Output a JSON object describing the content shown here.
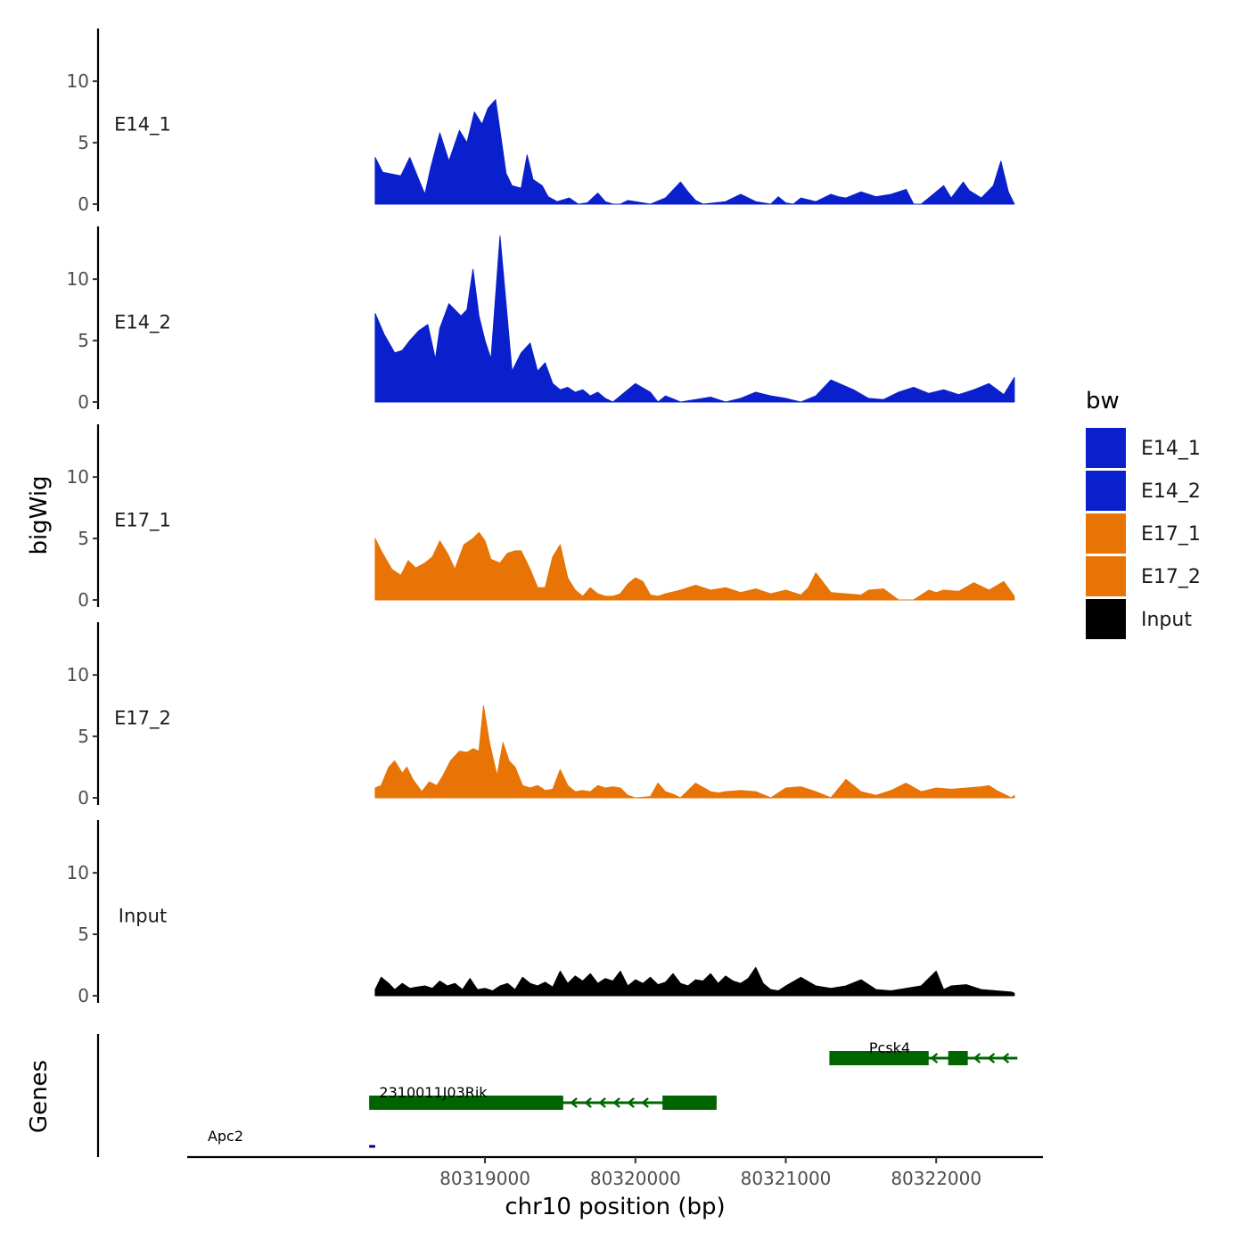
{
  "chart_data": {
    "type": "area",
    "x_axis_title": "chr10 position (bp)",
    "y_axis_title": "bigWig",
    "genes_axis_title": "Genes",
    "x_range": [
      80317020,
      80322710
    ],
    "x_ticks": [
      80319000,
      80320000,
      80321000,
      80322000
    ],
    "x_tick_labels": [
      "80319000",
      "80320000",
      "80321000",
      "80322000"
    ],
    "y_range": [
      0,
      14
    ],
    "y_ticks": [
      0,
      5,
      10
    ],
    "y_tick_labels": [
      "0",
      "5",
      "10"
    ],
    "legend_title": "bw",
    "legend": [
      {
        "name": "E14_1",
        "color": "#0a20cc"
      },
      {
        "name": "E14_2",
        "color": "#0a20cc"
      },
      {
        "name": "E17_1",
        "color": "#e87405"
      },
      {
        "name": "E17_2",
        "color": "#e87405"
      },
      {
        "name": "Input",
        "color": "#000000"
      }
    ],
    "tracks": [
      {
        "name": "E14_1",
        "color": "#0a20cc",
        "x": [
          80318270,
          80318320,
          80318440,
          80318500,
          80318560,
          80318600,
          80318640,
          80318700,
          80318760,
          80318830,
          80318880,
          80318930,
          80318980,
          80319020,
          80319070,
          80319100,
          80319140,
          80319180,
          80319240,
          80319280,
          80319320,
          80319380,
          80319420,
          80319480,
          80319560,
          80319620,
          80319680,
          80319750,
          80319800,
          80319850,
          80319900,
          80319950,
          80320100,
          80320200,
          80320300,
          80320350,
          80320400,
          80320450,
          80320600,
          80320700,
          80320800,
          80320900,
          80320950,
          80321000,
          80321050,
          80321100,
          80321200,
          80321300,
          80321350,
          80321400,
          80321500,
          80321600,
          80321700,
          80321800,
          80321850,
          80321900,
          80321950,
          80322050,
          80322100,
          80322180,
          80322220,
          80322300,
          80322380,
          80322430,
          80322480,
          80322520
        ],
        "y": [
          3.8,
          2.6,
          2.3,
          3.8,
          2.0,
          0.8,
          3.0,
          5.8,
          3.5,
          6.0,
          5.0,
          7.5,
          6.5,
          7.8,
          8.5,
          6.0,
          2.5,
          1.5,
          1.3,
          4.0,
          2.0,
          1.5,
          0.6,
          0.2,
          0.5,
          0.0,
          0.1,
          0.9,
          0.2,
          0.0,
          0.0,
          0.3,
          0.0,
          0.5,
          1.8,
          1.0,
          0.3,
          0.0,
          0.2,
          0.8,
          0.2,
          0.0,
          0.6,
          0.1,
          0.0,
          0.5,
          0.2,
          0.8,
          0.6,
          0.5,
          1.0,
          0.6,
          0.8,
          1.2,
          0.0,
          0.0,
          0.5,
          1.5,
          0.5,
          1.8,
          1.1,
          0.5,
          1.5,
          3.5,
          1.0,
          0.0
        ]
      },
      {
        "name": "E14_2",
        "color": "#0a20cc",
        "x": [
          80318270,
          80318330,
          80318400,
          80318450,
          80318500,
          80318560,
          80318620,
          80318670,
          80318700,
          80318760,
          80318840,
          80318880,
          80318920,
          80318960,
          80319000,
          80319040,
          80319100,
          80319140,
          80319180,
          80319240,
          80319300,
          80319350,
          80319400,
          80319450,
          80319500,
          80319550,
          80319600,
          80319650,
          80319700,
          80319750,
          80319800,
          80319850,
          80319900,
          80320000,
          80320100,
          80320150,
          80320200,
          80320300,
          80320500,
          80320600,
          80320700,
          80320800,
          80320900,
          80321000,
          80321100,
          80321200,
          80321300,
          80321450,
          80321550,
          80321650,
          80321750,
          80321850,
          80321950,
          80322050,
          80322150,
          80322250,
          80322350,
          80322450,
          80322520
        ],
        "y": [
          7.2,
          5.5,
          4.0,
          4.2,
          5.0,
          5.8,
          6.3,
          3.5,
          6.0,
          8.0,
          7.0,
          7.5,
          10.8,
          7.0,
          5.0,
          3.5,
          13.5,
          8.0,
          2.5,
          4.0,
          4.8,
          2.5,
          3.2,
          1.5,
          1.0,
          1.2,
          0.8,
          1.0,
          0.5,
          0.8,
          0.3,
          0.0,
          0.5,
          1.5,
          0.8,
          0.0,
          0.5,
          0.0,
          0.4,
          0.0,
          0.3,
          0.8,
          0.5,
          0.3,
          0.0,
          0.5,
          1.8,
          1.0,
          0.3,
          0.2,
          0.8,
          1.2,
          0.7,
          1.0,
          0.6,
          1.0,
          1.5,
          0.6,
          2.0
        ]
      },
      {
        "name": "E17_1",
        "color": "#e87405",
        "x": [
          80318270,
          80318310,
          80318380,
          80318440,
          80318490,
          80318540,
          80318600,
          80318650,
          80318700,
          80318750,
          80318800,
          80318860,
          80318920,
          80318960,
          80319000,
          80319040,
          80319100,
          80319150,
          80319200,
          80319240,
          80319300,
          80319350,
          80319400,
          80319450,
          80319500,
          80319550,
          80319600,
          80319650,
          80319700,
          80319750,
          80319800,
          80319850,
          80319900,
          80319950,
          80320000,
          80320050,
          80320100,
          80320150,
          80320200,
          80320300,
          80320400,
          80320500,
          80320600,
          80320700,
          80320800,
          80320900,
          80321000,
          80321100,
          80321150,
          80321200,
          80321300,
          80321400,
          80321500,
          80321550,
          80321650,
          80321750,
          80321850,
          80321950,
          80322000,
          80322050,
          80322150,
          80322250,
          80322350,
          80322450,
          80322520
        ],
        "y": [
          5.0,
          4.0,
          2.5,
          2.0,
          3.2,
          2.6,
          3.0,
          3.5,
          4.8,
          3.8,
          2.5,
          4.5,
          5.0,
          5.5,
          4.8,
          3.3,
          3.0,
          3.8,
          4.0,
          4.0,
          2.5,
          1.0,
          1.0,
          3.5,
          4.5,
          1.8,
          0.8,
          0.3,
          1.0,
          0.5,
          0.3,
          0.3,
          0.5,
          1.3,
          1.8,
          1.5,
          0.4,
          0.3,
          0.5,
          0.8,
          1.2,
          0.8,
          1.0,
          0.6,
          0.9,
          0.5,
          0.8,
          0.4,
          1.0,
          2.2,
          0.6,
          0.5,
          0.4,
          0.8,
          0.9,
          0.0,
          0.0,
          0.8,
          0.6,
          0.8,
          0.7,
          1.4,
          0.8,
          1.5,
          0.3
        ]
      },
      {
        "name": "E17_2",
        "color": "#e87405",
        "x": [
          80318270,
          80318310,
          80318360,
          80318400,
          80318450,
          80318480,
          80318520,
          80318580,
          80318630,
          80318680,
          80318720,
          80318770,
          80318830,
          80318880,
          80318920,
          80318960,
          80318990,
          80319030,
          80319080,
          80319120,
          80319160,
          80319200,
          80319250,
          80319300,
          80319350,
          80319400,
          80319450,
          80319500,
          80319550,
          80319600,
          80319650,
          80319700,
          80319750,
          80319800,
          80319850,
          80319900,
          80319950,
          80320000,
          80320100,
          80320150,
          80320200,
          80320250,
          80320300,
          80320400,
          80320500,
          80320550,
          80320600,
          80320700,
          80320800,
          80320900,
          80321000,
          80321100,
          80321200,
          80321300,
          80321400,
          80321500,
          80321600,
          80321700,
          80321800,
          80321900,
          80322000,
          80322100,
          80322200,
          80322300,
          80322350,
          80322400,
          80322500,
          80322520
        ],
        "y": [
          0.8,
          1.0,
          2.5,
          3.0,
          2.0,
          2.5,
          1.5,
          0.5,
          1.3,
          1.0,
          1.8,
          3.0,
          3.8,
          3.7,
          4.0,
          3.8,
          7.5,
          4.5,
          1.8,
          4.5,
          3.0,
          2.5,
          1.0,
          0.8,
          1.0,
          0.6,
          0.7,
          2.3,
          1.0,
          0.5,
          0.6,
          0.5,
          1.0,
          0.8,
          0.9,
          0.8,
          0.2,
          0.0,
          0.1,
          1.2,
          0.5,
          0.3,
          0.0,
          1.2,
          0.5,
          0.4,
          0.5,
          0.6,
          0.5,
          0.0,
          0.8,
          0.9,
          0.5,
          0.0,
          1.5,
          0.5,
          0.2,
          0.6,
          1.2,
          0.5,
          0.8,
          0.7,
          0.8,
          0.9,
          1.0,
          0.6,
          0.0,
          0.2
        ]
      },
      {
        "name": "Input",
        "color": "#000000",
        "x": [
          80318270,
          80318310,
          80318360,
          80318400,
          80318450,
          80318500,
          80318550,
          80318600,
          80318650,
          80318700,
          80318750,
          80318800,
          80318850,
          80318900,
          80318950,
          80319000,
          80319050,
          80319100,
          80319150,
          80319200,
          80319250,
          80319300,
          80319350,
          80319400,
          80319450,
          80319500,
          80319550,
          80319600,
          80319650,
          80319700,
          80319750,
          80319800,
          80319850,
          80319900,
          80319950,
          80320000,
          80320050,
          80320100,
          80320150,
          80320200,
          80320250,
          80320300,
          80320350,
          80320400,
          80320450,
          80320500,
          80320550,
          80320600,
          80320650,
          80320700,
          80320750,
          80320800,
          80320850,
          80320900,
          80320950,
          80321000,
          80321100,
          80321200,
          80321300,
          80321400,
          80321500,
          80321600,
          80321700,
          80321800,
          80321900,
          80322000,
          80322050,
          80322100,
          80322200,
          80322300,
          80322400,
          80322500,
          80322520
        ],
        "y": [
          0.5,
          1.5,
          1.0,
          0.5,
          1.0,
          0.6,
          0.7,
          0.8,
          0.6,
          1.2,
          0.8,
          1.0,
          0.5,
          1.4,
          0.5,
          0.6,
          0.4,
          0.8,
          1.0,
          0.5,
          1.5,
          1.0,
          0.8,
          1.1,
          0.7,
          2.0,
          1.0,
          1.6,
          1.2,
          1.8,
          1.0,
          1.4,
          1.2,
          2.0,
          0.8,
          1.3,
          1.0,
          1.5,
          0.9,
          1.1,
          1.8,
          1.0,
          0.8,
          1.3,
          1.2,
          1.8,
          1.0,
          1.6,
          1.2,
          1.0,
          1.4,
          2.3,
          1.0,
          0.5,
          0.4,
          0.8,
          1.5,
          0.8,
          0.6,
          0.8,
          1.3,
          0.5,
          0.4,
          0.6,
          0.8,
          2.0,
          0.5,
          0.8,
          0.9,
          0.5,
          0.4,
          0.3,
          0.2
        ]
      }
    ],
    "genes": [
      {
        "name": "Apc2",
        "row": 0,
        "start": 80318230,
        "end": 80318270,
        "strand": "+",
        "color": "#00008b",
        "exons": []
      },
      {
        "name": "2310011J03Rik",
        "row": 1,
        "start": 80318230,
        "end": 80320540,
        "strand": "-",
        "color": "#006400",
        "exons": [
          [
            80318230,
            80319520
          ],
          [
            80320180,
            80320540
          ]
        ]
      },
      {
        "name": "Pcsk4",
        "row": 2,
        "start": 80321290,
        "end": 80322540,
        "strand": "-",
        "color": "#006400",
        "exons": [
          [
            80321290,
            80321950
          ],
          [
            80322080,
            80322210
          ]
        ]
      }
    ]
  }
}
